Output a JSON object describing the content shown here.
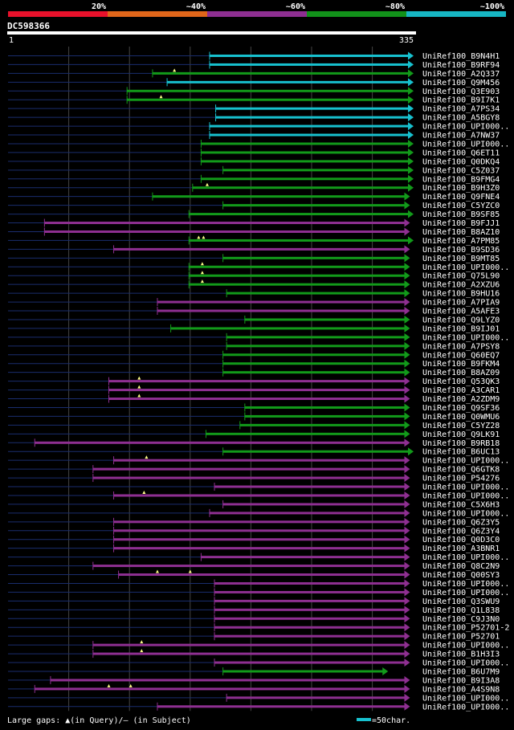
{
  "legend": {
    "labels": [
      "20%",
      "~40%",
      "~60%",
      "~80%",
      "~100%"
    ],
    "colors": [
      "#e8112b",
      "#e0661a",
      "#8e2f91",
      "#12911a",
      "#17b6c4"
    ]
  },
  "query": {
    "id": "DC598366",
    "start_label": "1",
    "end_label": "335",
    "length": 335
  },
  "colors": {
    "cyan": "#17c1cf",
    "green": "#129a1a",
    "magenta": "#8e2f91",
    "gap_line": "#1a2d6e",
    "marker": "#ffff88"
  },
  "footer": {
    "gap_text": "Large gaps: ▲(in Query)/– (in Subject)",
    "scale_text": "=50char."
  },
  "hits": [
    {
      "name": "UniRef100_B9N4H1",
      "start": 167,
      "end": 335,
      "color": "cyan",
      "markers": []
    },
    {
      "name": "UniRef100_B9RF94",
      "start": 167,
      "end": 335,
      "color": "cyan",
      "markers": []
    },
    {
      "name": "UniRef100_A2Q337",
      "start": 120,
      "end": 335,
      "color": "green",
      "markers": [
        138
      ]
    },
    {
      "name": "UniRef100_Q9M456",
      "start": 132,
      "end": 335,
      "color": "cyan",
      "markers": []
    },
    {
      "name": "UniRef100_Q3E903",
      "start": 99,
      "end": 335,
      "color": "green",
      "markers": []
    },
    {
      "name": "UniRef100_B9I7K1",
      "start": 99,
      "end": 335,
      "color": "green",
      "markers": [
        127
      ]
    },
    {
      "name": "UniRef100_A7PS34",
      "start": 172,
      "end": 335,
      "color": "cyan",
      "markers": []
    },
    {
      "name": "UniRef100_A5BGY8",
      "start": 172,
      "end": 335,
      "color": "cyan",
      "markers": []
    },
    {
      "name": "UniRef100_UPI000..",
      "start": 167,
      "end": 335,
      "color": "cyan",
      "markers": []
    },
    {
      "name": "UniRef100_A7NW37",
      "start": 167,
      "end": 335,
      "color": "cyan",
      "markers": []
    },
    {
      "name": "UniRef100_UPI000..",
      "start": 160,
      "end": 335,
      "color": "green",
      "markers": []
    },
    {
      "name": "UniRef100_Q6ET11",
      "start": 160,
      "end": 335,
      "color": "green",
      "markers": []
    },
    {
      "name": "UniRef100_Q0DKQ4",
      "start": 160,
      "end": 335,
      "color": "green",
      "markers": []
    },
    {
      "name": "UniRef100_C5Z037",
      "start": 178,
      "end": 335,
      "color": "green",
      "markers": []
    },
    {
      "name": "UniRef100_B9FMG4",
      "start": 160,
      "end": 335,
      "color": "green",
      "markers": []
    },
    {
      "name": "UniRef100_B9H3Z0",
      "start": 153,
      "end": 335,
      "color": "green",
      "markers": [
        165
      ]
    },
    {
      "name": "UniRef100_Q9FNE4",
      "start": 120,
      "end": 332,
      "color": "green",
      "markers": []
    },
    {
      "name": "UniRef100_C5YZC0",
      "start": 178,
      "end": 332,
      "color": "green",
      "markers": []
    },
    {
      "name": "UniRef100_B9SF85",
      "start": 150,
      "end": 335,
      "color": "green",
      "markers": []
    },
    {
      "name": "UniRef100_B9FJJ1",
      "start": 31,
      "end": 332,
      "color": "magenta",
      "markers": []
    },
    {
      "name": "UniRef100_B8AZ10",
      "start": 31,
      "end": 332,
      "color": "magenta",
      "markers": []
    },
    {
      "name": "UniRef100_A7PM85",
      "start": 150,
      "end": 335,
      "color": "green",
      "markers": [
        158,
        162
      ]
    },
    {
      "name": "UniRef100_B9SD36",
      "start": 88,
      "end": 332,
      "color": "magenta",
      "markers": []
    },
    {
      "name": "UniRef100_B9MT85",
      "start": 178,
      "end": 332,
      "color": "green",
      "markers": []
    },
    {
      "name": "UniRef100_UPI000..",
      "start": 150,
      "end": 332,
      "color": "green",
      "markers": [
        161
      ]
    },
    {
      "name": "UniRef100_Q75L90",
      "start": 150,
      "end": 332,
      "color": "green",
      "markers": [
        161
      ]
    },
    {
      "name": "UniRef100_A2XZU6",
      "start": 150,
      "end": 332,
      "color": "green",
      "markers": [
        161
      ]
    },
    {
      "name": "UniRef100_B9HU16",
      "start": 181,
      "end": 332,
      "color": "green",
      "markers": []
    },
    {
      "name": "UniRef100_A7PIA9",
      "start": 124,
      "end": 332,
      "color": "magenta",
      "markers": []
    },
    {
      "name": "UniRef100_A5AFE3",
      "start": 124,
      "end": 332,
      "color": "magenta",
      "markers": []
    },
    {
      "name": "UniRef100_Q9LYZ0",
      "start": 196,
      "end": 332,
      "color": "green",
      "markers": []
    },
    {
      "name": "UniRef100_B9IJ01",
      "start": 135,
      "end": 332,
      "color": "green",
      "markers": []
    },
    {
      "name": "UniRef100_UPI000..",
      "start": 181,
      "end": 332,
      "color": "green",
      "markers": []
    },
    {
      "name": "UniRef100_A7PSY8",
      "start": 181,
      "end": 332,
      "color": "green",
      "markers": []
    },
    {
      "name": "UniRef100_Q60EQ7",
      "start": 178,
      "end": 332,
      "color": "green",
      "markers": []
    },
    {
      "name": "UniRef100_B9FKM4",
      "start": 178,
      "end": 332,
      "color": "green",
      "markers": []
    },
    {
      "name": "UniRef100_B8AZ09",
      "start": 178,
      "end": 332,
      "color": "green",
      "markers": []
    },
    {
      "name": "UniRef100_Q53QK3",
      "start": 84,
      "end": 332,
      "color": "magenta",
      "markers": [
        109
      ]
    },
    {
      "name": "UniRef100_A3CAR1",
      "start": 84,
      "end": 332,
      "color": "magenta",
      "markers": [
        109
      ]
    },
    {
      "name": "UniRef100_A2ZDM9",
      "start": 84,
      "end": 332,
      "color": "magenta",
      "markers": [
        109
      ]
    },
    {
      "name": "UniRef100_Q9SF36",
      "start": 196,
      "end": 332,
      "color": "green",
      "markers": []
    },
    {
      "name": "UniRef100_Q0WMU6",
      "start": 196,
      "end": 332,
      "color": "green",
      "markers": []
    },
    {
      "name": "UniRef100_C5YZ28",
      "start": 192,
      "end": 332,
      "color": "green",
      "markers": []
    },
    {
      "name": "UniRef100_Q9LK91",
      "start": 164,
      "end": 332,
      "color": "green",
      "markers": []
    },
    {
      "name": "UniRef100_B9RB18",
      "start": 23,
      "end": 332,
      "color": "magenta",
      "markers": []
    },
    {
      "name": "UniRef100_B6UC13",
      "start": 178,
      "end": 335,
      "color": "green",
      "markers": []
    },
    {
      "name": "UniRef100_UPI000..",
      "start": 88,
      "end": 332,
      "color": "magenta",
      "markers": [
        115
      ]
    },
    {
      "name": "UniRef100_Q6GTK8",
      "start": 71,
      "end": 332,
      "color": "magenta",
      "markers": []
    },
    {
      "name": "UniRef100_P54276",
      "start": 71,
      "end": 332,
      "color": "magenta",
      "markers": []
    },
    {
      "name": "UniRef100_UPI000..",
      "start": 171,
      "end": 332,
      "color": "magenta",
      "markers": []
    },
    {
      "name": "UniRef100_UPI000..",
      "start": 88,
      "end": 332,
      "color": "magenta",
      "markers": [
        113
      ]
    },
    {
      "name": "UniRef100_C5X6H3",
      "start": 178,
      "end": 332,
      "color": "magenta",
      "markers": []
    },
    {
      "name": "UniRef100_UPI000..",
      "start": 167,
      "end": 332,
      "color": "magenta",
      "markers": []
    },
    {
      "name": "UniRef100_Q6Z3Y5",
      "start": 88,
      "end": 332,
      "color": "magenta",
      "markers": []
    },
    {
      "name": "UniRef100_Q6Z3Y4",
      "start": 88,
      "end": 332,
      "color": "magenta",
      "markers": []
    },
    {
      "name": "UniRef100_Q0D3C0",
      "start": 88,
      "end": 332,
      "color": "magenta",
      "markers": []
    },
    {
      "name": "UniRef100_A3BNR1",
      "start": 88,
      "end": 332,
      "color": "magenta",
      "markers": []
    },
    {
      "name": "UniRef100_UPI000..",
      "start": 160,
      "end": 332,
      "color": "magenta",
      "markers": []
    },
    {
      "name": "UniRef100_Q8C2N9",
      "start": 71,
      "end": 332,
      "color": "magenta",
      "markers": []
    },
    {
      "name": "UniRef100_Q00SY3",
      "start": 92,
      "end": 332,
      "color": "magenta",
      "markers": [
        124,
        151
      ]
    },
    {
      "name": "UniRef100_UPI000..",
      "start": 171,
      "end": 332,
      "color": "magenta",
      "markers": []
    },
    {
      "name": "UniRef100_UPI000..",
      "start": 171,
      "end": 332,
      "color": "magenta",
      "markers": []
    },
    {
      "name": "UniRef100_Q3SWU9",
      "start": 171,
      "end": 332,
      "color": "magenta",
      "markers": []
    },
    {
      "name": "UniRef100_Q1L838",
      "start": 171,
      "end": 332,
      "color": "magenta",
      "markers": []
    },
    {
      "name": "UniRef100_C9J3N0",
      "start": 171,
      "end": 332,
      "color": "magenta",
      "markers": []
    },
    {
      "name": "UniRef100_P52701-2",
      "start": 171,
      "end": 332,
      "color": "magenta",
      "markers": []
    },
    {
      "name": "UniRef100_P52701",
      "start": 171,
      "end": 332,
      "color": "magenta",
      "markers": []
    },
    {
      "name": "UniRef100_UPI000..",
      "start": 71,
      "end": 332,
      "color": "magenta",
      "markers": [
        111
      ]
    },
    {
      "name": "UniRef100_B1H3I3",
      "start": 71,
      "end": 332,
      "color": "magenta",
      "markers": [
        111
      ]
    },
    {
      "name": "UniRef100_UPI000..",
      "start": 171,
      "end": 332,
      "color": "magenta",
      "markers": []
    },
    {
      "name": "UniRef100_B6U7M9",
      "start": 178,
      "end": 314,
      "color": "green",
      "markers": []
    },
    {
      "name": "UniRef100_B9I3A8",
      "start": 36,
      "end": 332,
      "color": "magenta",
      "markers": []
    },
    {
      "name": "UniRef100_A4S9N8",
      "start": 23,
      "end": 332,
      "color": "magenta",
      "markers": [
        84,
        102
      ]
    },
    {
      "name": "UniRef100_UPI000..",
      "start": 181,
      "end": 332,
      "color": "magenta",
      "markers": []
    },
    {
      "name": "UniRef100_UPI000..",
      "start": 124,
      "end": 332,
      "color": "magenta",
      "markers": []
    }
  ]
}
